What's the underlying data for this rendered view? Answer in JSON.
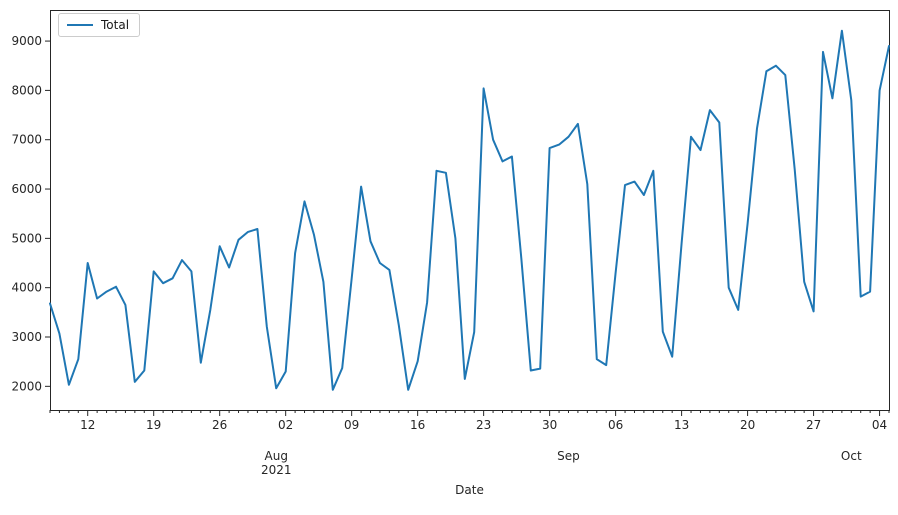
{
  "figure": {
    "background": "#ffffff",
    "axis_color": "#262626"
  },
  "legend": {
    "label": "Total",
    "position": "upper left"
  },
  "chart_data": {
    "type": "line",
    "title": "",
    "xlabel": "Date",
    "ylabel": "",
    "legend_entries": [
      "Total"
    ],
    "line_color": "#1f77b4",
    "grid": false,
    "start_date": "2021-07-08",
    "frequency": "daily",
    "end_date": "2021-10-05",
    "ylim": [
      1520,
      9630
    ],
    "y_ticks": [
      2000,
      3000,
      4000,
      5000,
      6000,
      7000,
      8000,
      9000
    ],
    "x_major_ticks": [
      {
        "date": "2021-07-12",
        "label": "12"
      },
      {
        "date": "2021-07-19",
        "label": "19"
      },
      {
        "date": "2021-07-26",
        "label": "26"
      },
      {
        "date": "2021-08-02",
        "label": "02"
      },
      {
        "date": "2021-08-09",
        "label": "09"
      },
      {
        "date": "2021-08-16",
        "label": "16"
      },
      {
        "date": "2021-08-23",
        "label": "23"
      },
      {
        "date": "2021-08-30",
        "label": "30"
      },
      {
        "date": "2021-09-06",
        "label": "06"
      },
      {
        "date": "2021-09-13",
        "label": "13"
      },
      {
        "date": "2021-09-20",
        "label": "20"
      },
      {
        "date": "2021-09-27",
        "label": "27"
      },
      {
        "date": "2021-10-04",
        "label": "04"
      }
    ],
    "x_month_labels": [
      {
        "date": "2021-08-01",
        "line1": "Aug",
        "line2": "2021"
      },
      {
        "date": "2021-09-01",
        "line1": "Sep",
        "line2": ""
      },
      {
        "date": "2021-10-01",
        "line1": "Oct",
        "line2": ""
      }
    ],
    "series": [
      {
        "name": "Total",
        "values": [
          3680,
          3070,
          2030,
          2550,
          4500,
          3780,
          3920,
          4020,
          3650,
          2090,
          2320,
          4330,
          4090,
          4190,
          4560,
          4330,
          2480,
          3550,
          4840,
          4410,
          4970,
          5130,
          5190,
          3210,
          1960,
          2300,
          4700,
          5750,
          5070,
          4120,
          1930,
          2370,
          4190,
          6050,
          4940,
          4500,
          4360,
          3240,
          1930,
          2510,
          3700,
          6370,
          6330,
          5000,
          2150,
          3100,
          8040,
          7000,
          6560,
          6660,
          4600,
          2320,
          2360,
          6830,
          6900,
          7060,
          7320,
          6100,
          2550,
          2430,
          4300,
          6080,
          6150,
          5880,
          6370,
          3110,
          2600,
          4900,
          7060,
          6790,
          7600,
          7350,
          4000,
          3550,
          5300,
          7230,
          8390,
          8500,
          8310,
          6400,
          4120,
          3520,
          8780,
          7840,
          9210,
          7800,
          3820,
          3920,
          8000,
          8900
        ]
      }
    ]
  }
}
